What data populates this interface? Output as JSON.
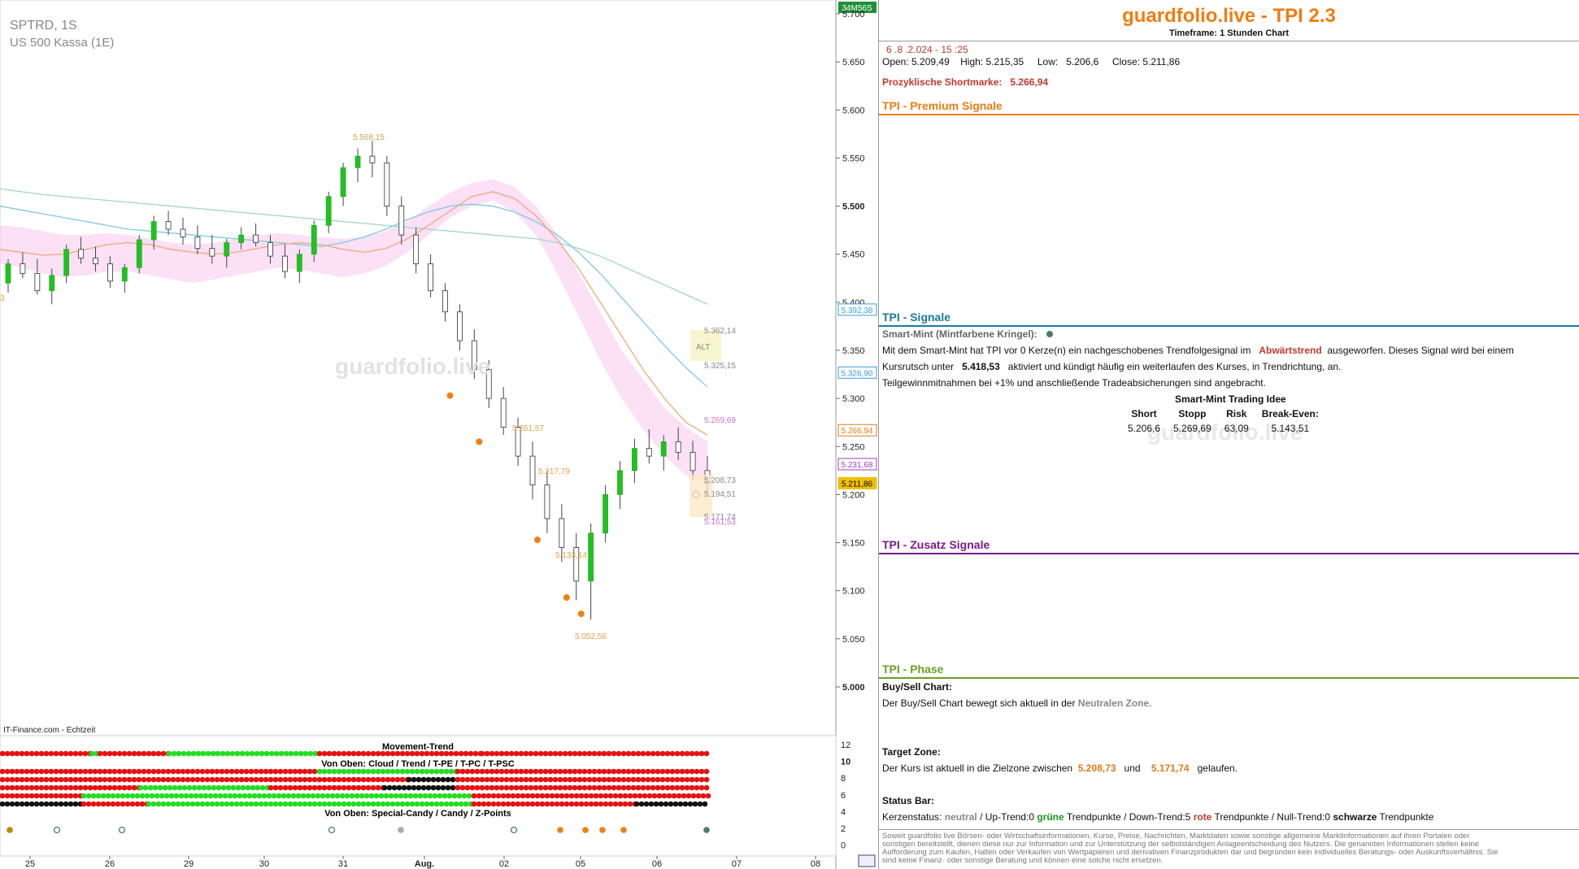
{
  "chart_data": {
    "type": "candlestick",
    "symbol": "SPTRD, 1S",
    "instrument": "US 500 Kassa (1E)",
    "watermark": "guardfolio.live",
    "source_label": "IT-Finance.com - Echtzeit",
    "timer_badge": "34M56S",
    "yticks": [
      "5.700",
      "5.650",
      "5.600",
      "5.550",
      "5.500",
      "5.450",
      "5.400",
      "5.350",
      "5.300",
      "5.250",
      "5.200",
      "5.150",
      "5.100",
      "5.050",
      "5.000"
    ],
    "xticks": [
      "25",
      "26",
      "29",
      "30",
      "31",
      "Aug.",
      "02",
      "05",
      "06",
      "07",
      "08"
    ],
    "price_badges": [
      {
        "label": "5.392,38",
        "value": 5392.38,
        "color": "#3a9ad9"
      },
      {
        "label": "5.326,90",
        "value": 5326.9,
        "color": "#3a9ad9"
      },
      {
        "label": "5.266,94",
        "value": 5266.94,
        "color": "#e07b1a"
      },
      {
        "label": "5.231,68",
        "value": 5231.68,
        "color": "#a040c0"
      },
      {
        "label": "5.211,86",
        "value": 5211.86,
        "color": "#f0c000"
      }
    ],
    "annotations": [
      {
        "text": "5.568,15",
        "color": "#d4a05a"
      },
      {
        "text": "5.261,57",
        "color": "#e8a040"
      },
      {
        "text": "5.217,79",
        "color": "#e8a040"
      },
      {
        "text": "5.133,14",
        "color": "#e8a040"
      },
      {
        "text": "5.052,56",
        "color": "#e8a040"
      },
      {
        "text": "5.362,14",
        "color": "#888888"
      },
      {
        "text": "5.325,15",
        "color": "#888888"
      },
      {
        "text": "5.269,69",
        "color": "#d070d0"
      },
      {
        "text": "5.208,73",
        "color": "#888888"
      },
      {
        "text": "5.194,51",
        "color": "#888888"
      },
      {
        "text": "5.171,74",
        "color": "#888888"
      },
      {
        "text": "5.161,53",
        "color": "#d070d0"
      },
      {
        "text": "ALT",
        "color": "#888888"
      },
      {
        "text": "3",
        "color": "#e8a040"
      }
    ],
    "candles": [
      [
        5420,
        5445,
        5410,
        5440
      ],
      [
        5440,
        5452,
        5425,
        5430
      ],
      [
        5430,
        5445,
        5408,
        5412
      ],
      [
        5412,
        5435,
        5398,
        5428
      ],
      [
        5428,
        5460,
        5420,
        5455
      ],
      [
        5455,
        5468,
        5440,
        5446
      ],
      [
        5446,
        5458,
        5432,
        5440
      ],
      [
        5440,
        5448,
        5415,
        5422
      ],
      [
        5422,
        5440,
        5410,
        5436
      ],
      [
        5436,
        5470,
        5430,
        5465
      ],
      [
        5465,
        5490,
        5455,
        5484
      ],
      [
        5484,
        5495,
        5470,
        5476
      ],
      [
        5476,
        5488,
        5460,
        5468
      ],
      [
        5468,
        5480,
        5450,
        5456
      ],
      [
        5456,
        5470,
        5440,
        5448
      ],
      [
        5448,
        5466,
        5436,
        5462
      ],
      [
        5462,
        5478,
        5455,
        5470
      ],
      [
        5470,
        5482,
        5458,
        5462
      ],
      [
        5462,
        5470,
        5440,
        5448
      ],
      [
        5448,
        5460,
        5425,
        5432
      ],
      [
        5432,
        5455,
        5420,
        5450
      ],
      [
        5450,
        5485,
        5442,
        5480
      ],
      [
        5480,
        5515,
        5472,
        5510
      ],
      [
        5510,
        5545,
        5500,
        5540
      ],
      [
        5540,
        5560,
        5525,
        5552
      ],
      [
        5552,
        5568,
        5530,
        5545
      ],
      [
        5545,
        5552,
        5490,
        5500
      ],
      [
        5500,
        5510,
        5460,
        5470
      ],
      [
        5470,
        5478,
        5430,
        5440
      ],
      [
        5440,
        5450,
        5405,
        5412
      ],
      [
        5412,
        5420,
        5380,
        5390
      ],
      [
        5390,
        5398,
        5350,
        5360
      ],
      [
        5360,
        5372,
        5320,
        5330
      ],
      [
        5330,
        5340,
        5290,
        5300
      ],
      [
        5300,
        5312,
        5262,
        5270
      ],
      [
        5270,
        5280,
        5230,
        5240
      ],
      [
        5240,
        5255,
        5195,
        5210
      ],
      [
        5210,
        5225,
        5160,
        5175
      ],
      [
        5175,
        5190,
        5130,
        5145
      ],
      [
        5145,
        5160,
        5090,
        5110
      ],
      [
        5110,
        5170,
        5070,
        5160
      ],
      [
        5160,
        5210,
        5150,
        5200
      ],
      [
        5200,
        5235,
        5185,
        5225
      ],
      [
        5225,
        5258,
        5212,
        5248
      ],
      [
        5248,
        5268,
        5232,
        5240
      ],
      [
        5240,
        5262,
        5225,
        5255
      ],
      [
        5255,
        5270,
        5236,
        5244
      ],
      [
        5244,
        5256,
        5215,
        5225
      ],
      [
        5225,
        5240,
        5200,
        5212
      ]
    ],
    "ma_lines": [
      {
        "name": "",
        "color": "#9fd8c8",
        "values": [
          5518,
          5515,
          5512,
          5510,
          5508,
          5506,
          5504,
          5502,
          5500,
          5498,
          5496,
          5494,
          5492,
          5490,
          5488,
          5486,
          5484,
          5482,
          5480,
          5478,
          5476,
          5474,
          5472,
          5470,
          5468,
          5466,
          5462,
          5456,
          5448,
          5438,
          5428,
          5418,
          5408,
          5398
        ]
      },
      {
        "name": "",
        "color": "#7fc8e0",
        "values": [
          5500,
          5496,
          5492,
          5488,
          5484,
          5480,
          5476,
          5474,
          5472,
          5470,
          5468,
          5466,
          5464,
          5462,
          5460,
          5458,
          5462,
          5468,
          5476,
          5486,
          5494,
          5500,
          5502,
          5500,
          5494,
          5484,
          5470,
          5452,
          5430,
          5405,
          5380,
          5355,
          5332,
          5312
        ]
      },
      {
        "name": "",
        "color": "#f0a878",
        "values": [
          5455,
          5452,
          5449,
          5450,
          5455,
          5460,
          5462,
          5460,
          5455,
          5452,
          5450,
          5452,
          5456,
          5460,
          5462,
          5460,
          5455,
          5452,
          5456,
          5466,
          5480,
          5495,
          5510,
          5515,
          5508,
          5490,
          5465,
          5435,
          5400,
          5365,
          5330,
          5300,
          5275,
          5262
        ]
      }
    ],
    "cloud": {
      "upper": [
        5480,
        5478,
        5474,
        5470,
        5470,
        5472,
        5470,
        5466,
        5462,
        5460,
        5462,
        5466,
        5470,
        5472,
        5470,
        5468,
        5466,
        5468,
        5474,
        5484,
        5500,
        5514,
        5524,
        5528,
        5520,
        5500,
        5470,
        5430,
        5390,
        5350,
        5320,
        5290,
        5270,
        5255
      ],
      "lower": [
        5440,
        5436,
        5430,
        5426,
        5428,
        5432,
        5432,
        5428,
        5424,
        5420,
        5424,
        5428,
        5432,
        5436,
        5434,
        5430,
        5426,
        5430,
        5438,
        5452,
        5470,
        5488,
        5500,
        5506,
        5494,
        5470,
        5430,
        5385,
        5340,
        5300,
        5268,
        5240,
        5220,
        5210
      ]
    },
    "indicator_panel": {
      "title_movement": "Movement-Trend",
      "title_cloud": "Von Oben: Cloud / Trend / T-PE / T-PC / T-PSC",
      "title_special": "Von Oben: Special-Candy / Candy / Z-Points",
      "yticks": [
        "12",
        "10",
        "8",
        "6",
        "4",
        "2",
        "0"
      ]
    }
  },
  "panel": {
    "title": "guardfolio.live - TPI 2.3",
    "timeframe": "Timeframe: 1 Stunden Chart",
    "datetime": "6 .8 .2.024 - 15 :25",
    "ohlc": {
      "open_label": "Open:",
      "open": "5.209,49",
      "high_label": "High:",
      "high": "5.215,35",
      "low_label": "Low:",
      "low": "5.206,6",
      "close_label": "Close:",
      "close": "5.211,86"
    },
    "shortmarke_label": "Prozyklische Shortmarke:",
    "shortmarke_value": "5.266,94",
    "sec_premium": "TPI - Premium Signale",
    "sec_signale": "TPI - Signale",
    "smart_mint_title": "Smart-Mint (Mintfarbene Kringel):",
    "smart_mint_line1_a": "Mit dem Smart-Mint hat TPI vor 0  Kerze(n) ein nachgeschobenes Trendfolgesignal im",
    "smart_mint_line1_b": "Abwärtstrend",
    "smart_mint_line1_c": "ausgeworfen. Dieses Signal wird bei einem",
    "smart_mint_line2_a": "Kursrutsch unter",
    "smart_mint_line2_b": "5.418,53",
    "smart_mint_line2_c": "aktiviert und kündigt häufig ein weiterlaufen des Kurses, in Trendrichtung, an.",
    "smart_mint_line3": "Teilgewinnmitnahmen bei +1% und anschließende Tradeabsicherungen sind angebracht.",
    "idea_title": "Smart-Mint Trading Idee",
    "idea_headers": [
      "Short",
      "Stopp",
      "Risk",
      "Break-Even:"
    ],
    "idea_values": [
      "5.206,6",
      "5.269,69",
      "63,09",
      "5.143,51"
    ],
    "idea_watermark": "guardfolio.live",
    "sec_zusatz": "TPI - Zusatz Signale",
    "sec_phase": "TPI - Phase",
    "buysell_title": "Buy/Sell Chart:",
    "buysell_a": "Der Buy/Sell Chart bewegt sich aktuell in der",
    "buysell_b": "Neutralen Zone.",
    "target_title": "Target Zone:",
    "target_a": "Der Kurs ist aktuell in die Zielzone zwischen",
    "target_v1": "5.208,73",
    "target_und": "und",
    "target_v2": "5.171,74",
    "target_c": "gelaufen.",
    "status_title": "Status Bar:",
    "status_a": "Kerzenstatus:",
    "status_neutral": "neutral",
    "status_b": "/ Up-Trend:0",
    "status_gruene": "grüne",
    "status_c": "Trendpunkte  / Down-Trend:5",
    "status_rote": "rote",
    "status_d": "Trendpunkte / Null-Trend:0",
    "status_schwarze": "schwarze",
    "status_e": "Trendpunkte",
    "disclaimer": "Soweit guardfolio live Börsen- oder Wirtschaftsinformationen, Kurse, Preise, Nachrichten, Marktdaten sowie sonstige allgemeine Marktinformationen auf ihren Portalen oder sonstigen bereitstellt, dienen diese nur zur Information und zur Unterstützung der selbstständigen Anlageentscheidung des Nutzers. Die genannten Informationen stellen keine Aufforderung zum Kaufen, Halten oder Verkaufen von Wertpapieren und derivativen Finanzprodukten dar und begründen kein individuelles Beratungs- oder Auskunftsverhältnis. Sie sind keine Finanz- oder sonstige Beratung und können eine solche nicht ersetzen.",
    "colors": {
      "premium": "#f07c12",
      "signale": "#1a7aa0",
      "zusatz": "#7a1a8a",
      "phase": "#6aa020",
      "red_text": "#c0392b",
      "orange_text": "#e07b1a"
    }
  }
}
